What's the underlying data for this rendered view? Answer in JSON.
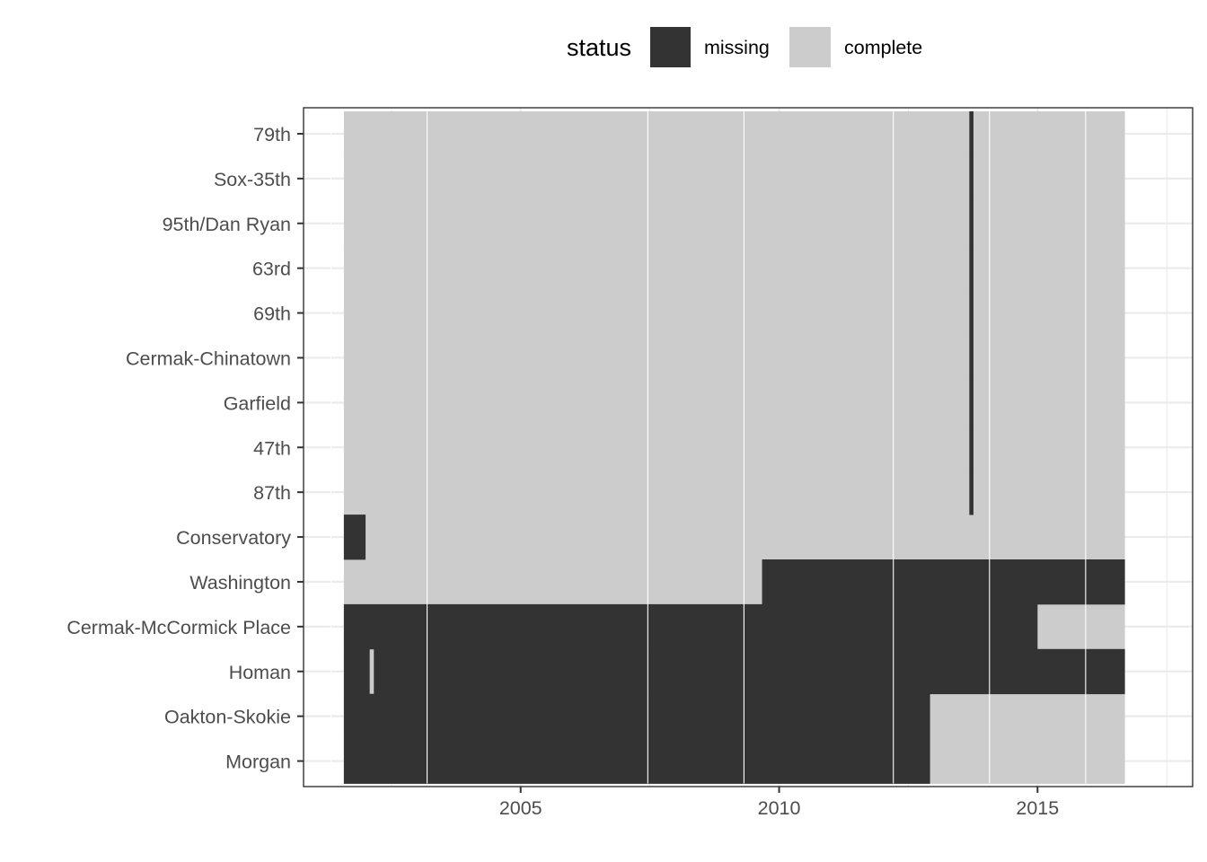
{
  "chart_data": {
    "type": "heatmap",
    "title": "",
    "xlabel": "",
    "ylabel": "",
    "xlim": [
      2000.8,
      2018.0
    ],
    "x_ticks": [
      "2005",
      "2010",
      "2015"
    ],
    "x_tick_values": [
      2005,
      2010,
      2015
    ],
    "grid": true,
    "legend": {
      "title": "status",
      "position": "top",
      "entries": [
        {
          "key": "missing",
          "label": "missing",
          "color": "#333333"
        },
        {
          "key": "complete",
          "label": "complete",
          "color": "#cccccc"
        }
      ]
    },
    "x_range": [
      2001.58,
      2016.69
    ],
    "stations": [
      "79th",
      "Sox-35th",
      "95th/Dan Ryan",
      "63rd",
      "69th",
      "Cermak-Chinatown",
      "Garfield",
      "47th",
      "87th",
      "Conservatory",
      "Washington",
      "Cermak-McCormick Place",
      "Homan",
      "Oakton-Skokie",
      "Morgan"
    ],
    "missing_periods": [
      {
        "station": "79th",
        "start": 2013.68,
        "end": 2013.76
      },
      {
        "station": "Sox-35th",
        "start": 2013.68,
        "end": 2013.76
      },
      {
        "station": "95th/Dan Ryan",
        "start": 2013.68,
        "end": 2013.76
      },
      {
        "station": "63rd",
        "start": 2013.68,
        "end": 2013.76
      },
      {
        "station": "69th",
        "start": 2013.68,
        "end": 2013.76
      },
      {
        "station": "Cermak-Chinatown",
        "start": 2013.68,
        "end": 2013.76
      },
      {
        "station": "Garfield",
        "start": 2013.68,
        "end": 2013.76
      },
      {
        "station": "47th",
        "start": 2013.68,
        "end": 2013.76
      },
      {
        "station": "87th",
        "start": 2013.68,
        "end": 2013.76
      },
      {
        "station": "Conservatory",
        "start": 2001.58,
        "end": 2002.0
      },
      {
        "station": "Washington",
        "start": 2009.67,
        "end": 2016.69
      },
      {
        "station": "Cermak-McCormick Place",
        "start": 2001.58,
        "end": 2015.0
      },
      {
        "station": "Homan",
        "start": 2001.58,
        "end": 2002.08
      },
      {
        "station": "Homan",
        "start": 2002.16,
        "end": 2016.69
      },
      {
        "station": "Oakton-Skokie",
        "start": 2001.58,
        "end": 2012.92
      },
      {
        "station": "Morgan",
        "start": 2001.58,
        "end": 2012.92
      }
    ]
  }
}
